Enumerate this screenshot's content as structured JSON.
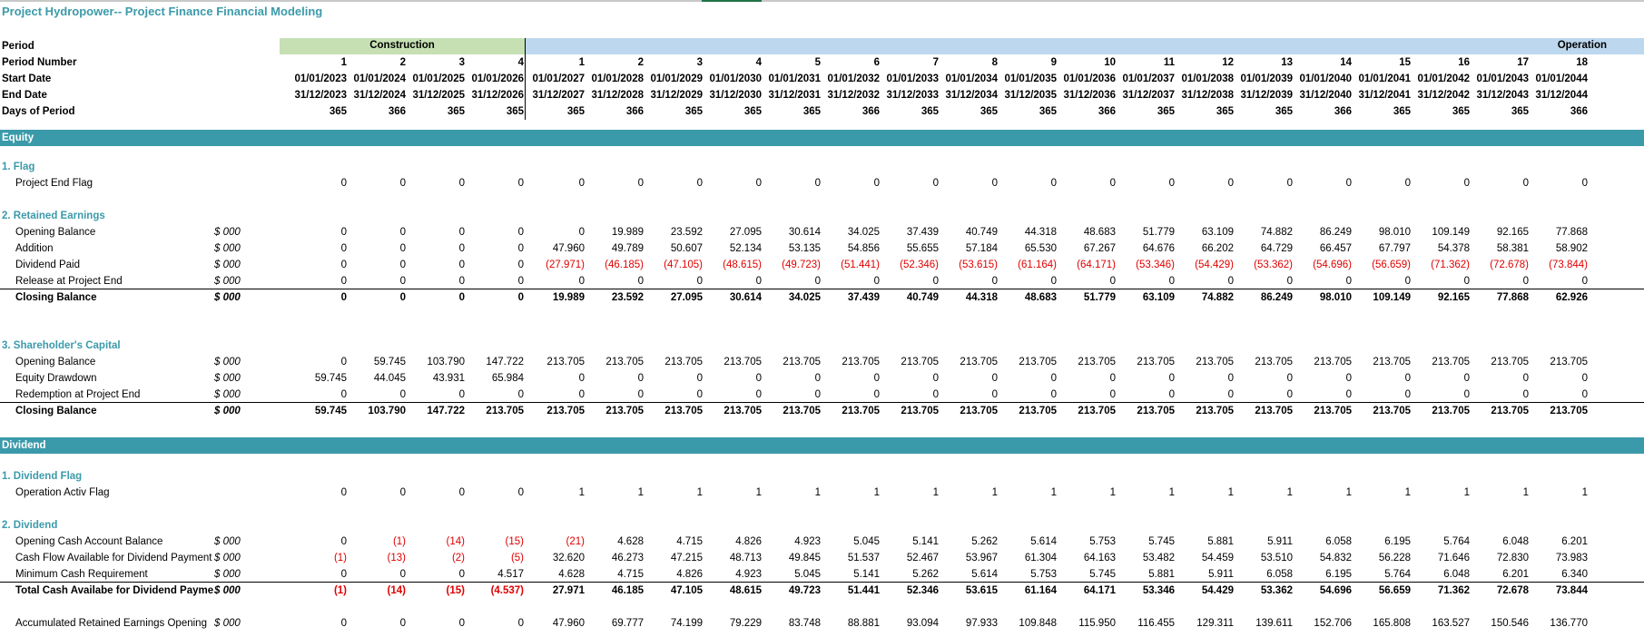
{
  "title": "Project Hydropower-- Project Finance Financial Modeling",
  "header": {
    "construction_label": "Construction",
    "operation_label": "Operation",
    "rows": [
      {
        "label": "Period"
      },
      {
        "label": "Period Number",
        "values": [
          "1",
          "2",
          "3",
          "4",
          "1",
          "2",
          "3",
          "4",
          "5",
          "6",
          "7",
          "8",
          "9",
          "10",
          "11",
          "12",
          "13",
          "14",
          "15",
          "16",
          "17",
          "18"
        ]
      },
      {
        "label": "Start Date",
        "values": [
          "01/01/2023",
          "01/01/2024",
          "01/01/2025",
          "01/01/2026",
          "01/01/2027",
          "01/01/2028",
          "01/01/2029",
          "01/01/2030",
          "01/01/2031",
          "01/01/2032",
          "01/01/2033",
          "01/01/2034",
          "01/01/2035",
          "01/01/2036",
          "01/01/2037",
          "01/01/2038",
          "01/01/2039",
          "01/01/2040",
          "01/01/2041",
          "01/01/2042",
          "01/01/2043",
          "01/01/2044"
        ]
      },
      {
        "label": "End Date",
        "values": [
          "31/12/2023",
          "31/12/2024",
          "31/12/2025",
          "31/12/2026",
          "31/12/2027",
          "31/12/2028",
          "31/12/2029",
          "31/12/2030",
          "31/12/2031",
          "31/12/2032",
          "31/12/2033",
          "31/12/2034",
          "31/12/2035",
          "31/12/2036",
          "31/12/2037",
          "31/12/2038",
          "31/12/2039",
          "31/12/2040",
          "31/12/2041",
          "31/12/2042",
          "31/12/2043",
          "31/12/2044"
        ]
      },
      {
        "label": "Days of Period",
        "values": [
          "365",
          "366",
          "365",
          "365",
          "365",
          "366",
          "365",
          "365",
          "365",
          "366",
          "365",
          "365",
          "365",
          "366",
          "365",
          "365",
          "365",
          "366",
          "365",
          "365",
          "365",
          "366"
        ]
      }
    ]
  },
  "bands": {
    "equity": "Equity",
    "dividend": "Dividend"
  },
  "sections": [
    {
      "title": "1. Flag",
      "rows": [
        {
          "label": "Project End Flag",
          "unit": "",
          "bold": false,
          "values": [
            "0",
            "0",
            "0",
            "0",
            "0",
            "0",
            "0",
            "0",
            "0",
            "0",
            "0",
            "0",
            "0",
            "0",
            "0",
            "0",
            "0",
            "0",
            "0",
            "0",
            "0",
            "0"
          ]
        }
      ]
    },
    {
      "title": "2. Retained Earnings",
      "rows": [
        {
          "label": "Opening Balance",
          "unit": "$ 000",
          "bold": false,
          "values": [
            "0",
            "0",
            "0",
            "0",
            "0",
            "19.989",
            "23.592",
            "27.095",
            "30.614",
            "34.025",
            "37.439",
            "40.749",
            "44.318",
            "48.683",
            "51.779",
            "63.109",
            "74.882",
            "86.249",
            "98.010",
            "109.149",
            "92.165",
            "77.868"
          ]
        },
        {
          "label": "Addition",
          "unit": "$ 000",
          "bold": false,
          "values": [
            "0",
            "0",
            "0",
            "0",
            "47.960",
            "49.789",
            "50.607",
            "52.134",
            "53.135",
            "54.856",
            "55.655",
            "57.184",
            "65.530",
            "67.267",
            "64.676",
            "66.202",
            "64.729",
            "66.457",
            "67.797",
            "54.378",
            "58.381",
            "58.902"
          ]
        },
        {
          "label": "Dividend Paid",
          "unit": "$ 000",
          "bold": false,
          "values": [
            "0",
            "0",
            "0",
            "0",
            "(27.971)",
            "(46.185)",
            "(47.105)",
            "(48.615)",
            "(49.723)",
            "(51.441)",
            "(52.346)",
            "(53.615)",
            "(61.164)",
            "(64.171)",
            "(53.346)",
            "(54.429)",
            "(53.362)",
            "(54.696)",
            "(56.659)",
            "(71.362)",
            "(72.678)",
            "(73.844)"
          ]
        },
        {
          "label": "Release at Project End",
          "unit": "$ 000",
          "bold": false,
          "values": [
            "0",
            "0",
            "0",
            "0",
            "0",
            "0",
            "0",
            "0",
            "0",
            "0",
            "0",
            "0",
            "0",
            "0",
            "0",
            "0",
            "0",
            "0",
            "0",
            "0",
            "0",
            "0"
          ]
        },
        {
          "label": "Closing Balance",
          "unit": "$ 000",
          "bold": true,
          "values": [
            "0",
            "0",
            "0",
            "0",
            "19.989",
            "23.592",
            "27.095",
            "30.614",
            "34.025",
            "37.439",
            "40.749",
            "44.318",
            "48.683",
            "51.779",
            "63.109",
            "74.882",
            "86.249",
            "98.010",
            "109.149",
            "92.165",
            "77.868",
            "62.926"
          ]
        }
      ]
    },
    {
      "title": "3. Shareholder's Capital",
      "rows": [
        {
          "label": "Opening Balance",
          "unit": "$ 000",
          "bold": false,
          "values": [
            "0",
            "59.745",
            "103.790",
            "147.722",
            "213.705",
            "213.705",
            "213.705",
            "213.705",
            "213.705",
            "213.705",
            "213.705",
            "213.705",
            "213.705",
            "213.705",
            "213.705",
            "213.705",
            "213.705",
            "213.705",
            "213.705",
            "213.705",
            "213.705",
            "213.705"
          ]
        },
        {
          "label": "Equity Drawdown",
          "unit": "$ 000",
          "bold": false,
          "values": [
            "59.745",
            "44.045",
            "43.931",
            "65.984",
            "0",
            "0",
            "0",
            "0",
            "0",
            "0",
            "0",
            "0",
            "0",
            "0",
            "0",
            "0",
            "0",
            "0",
            "0",
            "0",
            "0",
            "0"
          ]
        },
        {
          "label": "Redemption at Project End",
          "unit": "$ 000",
          "bold": false,
          "values": [
            "0",
            "0",
            "0",
            "0",
            "0",
            "0",
            "0",
            "0",
            "0",
            "0",
            "0",
            "0",
            "0",
            "0",
            "0",
            "0",
            "0",
            "0",
            "0",
            "0",
            "0",
            "0"
          ]
        },
        {
          "label": "Closing Balance",
          "unit": "$ 000",
          "bold": true,
          "values": [
            "59.745",
            "103.790",
            "147.722",
            "213.705",
            "213.705",
            "213.705",
            "213.705",
            "213.705",
            "213.705",
            "213.705",
            "213.705",
            "213.705",
            "213.705",
            "213.705",
            "213.705",
            "213.705",
            "213.705",
            "213.705",
            "213.705",
            "213.705",
            "213.705",
            "213.705"
          ]
        }
      ]
    },
    {
      "title": "1. Dividend Flag",
      "rows": [
        {
          "label": "Operation Activ Flag",
          "unit": "",
          "bold": false,
          "values": [
            "0",
            "0",
            "0",
            "0",
            "1",
            "1",
            "1",
            "1",
            "1",
            "1",
            "1",
            "1",
            "1",
            "1",
            "1",
            "1",
            "1",
            "1",
            "1",
            "1",
            "1",
            "1"
          ]
        }
      ]
    },
    {
      "title": "2. Dividend",
      "rows": [
        {
          "label": "Opening Cash Account Balance",
          "unit": "$ 000",
          "bold": false,
          "values": [
            "0",
            "(1)",
            "(14)",
            "(15)",
            "(21)",
            "4.628",
            "4.715",
            "4.826",
            "4.923",
            "5.045",
            "5.141",
            "5.262",
            "5.614",
            "5.753",
            "5.745",
            "5.881",
            "5.911",
            "6.058",
            "6.195",
            "5.764",
            "6.048",
            "6.201"
          ]
        },
        {
          "label": "Cash Flow Available for Dividend Payment",
          "unit": "$ 000",
          "bold": false,
          "values": [
            "(1)",
            "(13)",
            "(2)",
            "(5)",
            "32.620",
            "46.273",
            "47.215",
            "48.713",
            "49.845",
            "51.537",
            "52.467",
            "53.967",
            "61.304",
            "64.163",
            "53.482",
            "54.459",
            "53.510",
            "54.832",
            "56.228",
            "71.646",
            "72.830",
            "73.983"
          ]
        },
        {
          "label": "Minimum Cash Requirement",
          "unit": "$ 000",
          "bold": false,
          "values": [
            "0",
            "0",
            "0",
            "4.517",
            "4.628",
            "4.715",
            "4.826",
            "4.923",
            "5.045",
            "5.141",
            "5.262",
            "5.614",
            "5.753",
            "5.745",
            "5.881",
            "5.911",
            "6.058",
            "6.195",
            "5.764",
            "6.048",
            "6.201",
            "6.340"
          ]
        },
        {
          "label": "Total Cash Availabe for Dividend Payme",
          "unit": "$ 000",
          "bold": true,
          "values": [
            "(1)",
            "(14)",
            "(15)",
            "(4.537)",
            "27.971",
            "46.185",
            "47.105",
            "48.615",
            "49.723",
            "51.441",
            "52.346",
            "53.615",
            "61.164",
            "64.171",
            "53.346",
            "54.429",
            "53.362",
            "54.696",
            "56.659",
            "71.362",
            "72.678",
            "73.844"
          ]
        },
        {
          "label": "Accumulated Retained Earnings Opening",
          "unit": "$ 000",
          "bold": false,
          "values": [
            "0",
            "0",
            "0",
            "0",
            "47.960",
            "69.777",
            "74.199",
            "79.229",
            "83.748",
            "88.881",
            "93.094",
            "97.933",
            "109.848",
            "115.950",
            "116.455",
            "129.311",
            "139.611",
            "152.706",
            "165.808",
            "163.527",
            "150.546",
            "136.770"
          ]
        }
      ]
    }
  ]
}
